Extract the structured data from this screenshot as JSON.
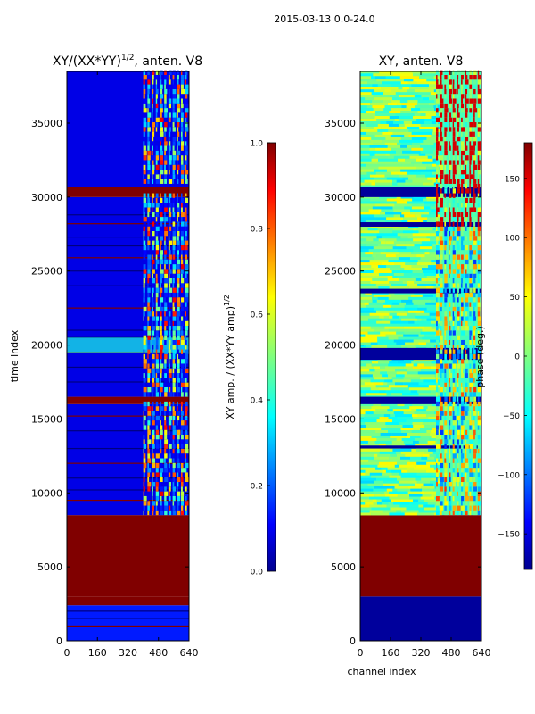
{
  "suptitle": "2015-03-13 0.0-24.0",
  "chart_data": [
    {
      "type": "heatmap",
      "id": "amp",
      "title_main": "XY/(XX*YY)",
      "title_sup": "1/2",
      "title_tail": ", anten. V8",
      "xlabel": "",
      "ylabel": "time index",
      "xlim": [
        0,
        640
      ],
      "ylim": [
        0,
        38500
      ],
      "xticks": [
        0,
        160,
        320,
        480,
        640
      ],
      "yticks": [
        0,
        5000,
        10000,
        15000,
        20000,
        25000,
        30000,
        35000
      ],
      "colorbar": {
        "label_main": "XY amp. / (XX*YY amp)",
        "label_sup": "1/2",
        "range": [
          0.0,
          1.0
        ],
        "ticks": [
          "0.0",
          "0.2",
          "0.4",
          "0.6",
          "0.8",
          "1.0"
        ],
        "tick_values": [
          0.0,
          0.2,
          0.4,
          0.6,
          0.8,
          1.0
        ]
      },
      "colormap": "jet",
      "bands": [
        {
          "y0": 0,
          "y1": 2400,
          "value": 0.15,
          "label": "low amplitude"
        },
        {
          "y0": 2400,
          "y1": 3000,
          "value": 1.0,
          "label": "saturated"
        },
        {
          "y0": 3000,
          "y1": 8500,
          "value": 1.0,
          "label": "saturated"
        },
        {
          "y0": 8500,
          "y1": 16000,
          "value": 0.1,
          "label": "low amplitude"
        },
        {
          "y0": 16000,
          "y1": 16500,
          "value": 1.0,
          "label": "saturated"
        },
        {
          "y0": 16500,
          "y1": 30000,
          "value": 0.1,
          "label": "low amplitude"
        },
        {
          "y0": 30000,
          "y1": 30700,
          "value": 1.0,
          "label": "saturated"
        },
        {
          "y0": 30700,
          "y1": 38500,
          "value": 0.1,
          "label": "low amplitude"
        }
      ],
      "active_channels": [
        400,
        640
      ]
    },
    {
      "type": "heatmap",
      "id": "phase",
      "title_main": "XY, anten. V8",
      "xlabel": "channel index",
      "ylabel": "",
      "xlim": [
        0,
        640
      ],
      "ylim": [
        0,
        38500
      ],
      "xticks": [
        0,
        160,
        320,
        480,
        640
      ],
      "yticks": [
        0,
        5000,
        10000,
        15000,
        20000,
        25000,
        30000,
        35000
      ],
      "colorbar": {
        "label_main": "phase (deg.)",
        "range": [
          -180,
          180
        ],
        "ticks": [
          "−150",
          "−100",
          "−50",
          "0",
          "50",
          "100",
          "150"
        ],
        "tick_values": [
          -150,
          -100,
          -50,
          0,
          50,
          100,
          150
        ]
      },
      "colormap": "jet",
      "bands": [
        {
          "y0": 0,
          "y1": 3000,
          "value": -170,
          "label": "dark blue"
        },
        {
          "y0": 3000,
          "y1": 8500,
          "value": 180,
          "label": "saturated"
        },
        {
          "y0": 8500,
          "y1": 38500,
          "value": -20,
          "label": "mixed phase"
        }
      ],
      "active_channels": [
        400,
        640
      ]
    }
  ]
}
